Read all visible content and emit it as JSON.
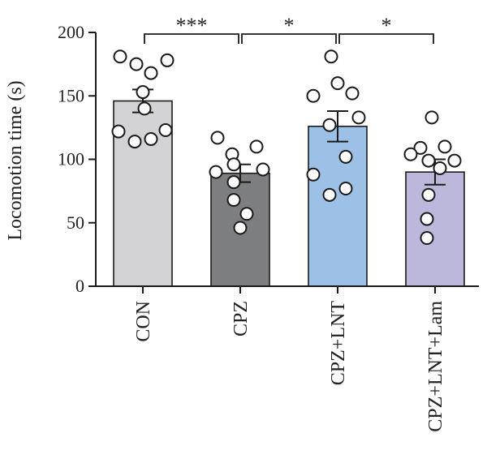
{
  "chart_data": {
    "type": "bar",
    "title": "",
    "xlabel": "",
    "ylabel": "Locomotion time (s)",
    "ylim": [
      0,
      200
    ],
    "yticks": [
      0,
      50,
      100,
      150,
      200
    ],
    "grid": false,
    "categories": [
      "CON",
      "CPZ",
      "CPZ+LNT",
      "CPZ+LNT+Lam"
    ],
    "values": [
      146,
      89,
      126,
      90
    ],
    "sem": [
      9,
      7,
      12,
      10
    ],
    "colors": [
      "#d3d3d5",
      "#7d7e82",
      "#9dc0e6",
      "#bcb8dc"
    ],
    "points": [
      [
        181,
        175,
        168,
        178,
        153,
        140,
        122,
        114,
        116,
        123
      ],
      [
        117,
        104,
        110,
        90,
        96,
        92,
        82,
        68,
        57,
        46
      ],
      [
        181,
        160,
        150,
        152,
        133,
        127,
        102,
        88,
        72,
        77
      ],
      [
        133,
        109,
        110,
        104,
        99,
        99,
        93,
        72,
        53,
        38
      ]
    ],
    "significance": [
      {
        "from": 0,
        "to": 1,
        "label": "***"
      },
      {
        "from": 1,
        "to": 2,
        "label": "*"
      },
      {
        "from": 2,
        "to": 3,
        "label": "*"
      }
    ]
  }
}
